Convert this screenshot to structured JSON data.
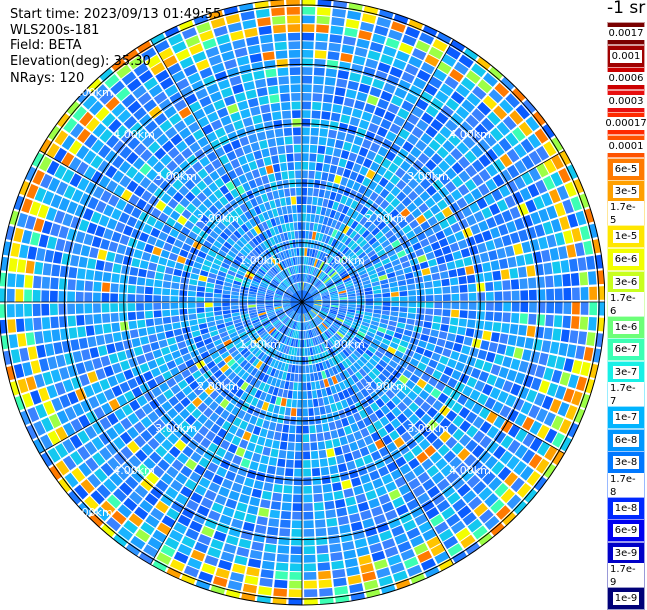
{
  "header": {
    "start_time": "Start time: 2023/09/13 01:49:55",
    "instrument": "WLS200s-181",
    "field": "Field: BETA",
    "elevation": "Elevation(deg): 35.30",
    "nrays": "NRays: 120"
  },
  "colorbar": {
    "unit": "-1 sr",
    "labels": [
      "0.0017",
      "0.001",
      "0.0006",
      "0.0003",
      "0.00017",
      "0.0001",
      "6e-5",
      "3e-5",
      "1.7e-5",
      "1e-5",
      "6e-6",
      "3e-6",
      "1.7e-6",
      "1e-6",
      "6e-7",
      "3e-7",
      "1.7e-7",
      "1e-7",
      "6e-8",
      "3e-8",
      "1.7e-8",
      "1e-8",
      "6e-9",
      "3e-9",
      "1.7e-9",
      "1e-9"
    ],
    "colors": [
      "#7a0000",
      "#a00000",
      "#cc0000",
      "#e81010",
      "#ff2a00",
      "#ff5200",
      "#ff7a00",
      "#ffa000",
      "#ffc400",
      "#ffe600",
      "#f2ff00",
      "#c8ff1e",
      "#9cff46",
      "#6cff78",
      "#3cffb4",
      "#18f0e6",
      "#00d2ff",
      "#00b4ff",
      "#0096ff",
      "#0078ff",
      "#0050ff",
      "#0028ff",
      "#0000f0",
      "#0000c8",
      "#00009c",
      "#000078"
    ]
  },
  "chart_data": {
    "type": "heatmap",
    "projection": "polar PPI",
    "n_rays": 120,
    "elevation_deg": 35.3,
    "field": "BETA",
    "range_rings_km": [
      1,
      2,
      3,
      4,
      5
    ],
    "range_ring_labels": [
      "1.00km",
      "2.00km",
      "3.00km",
      "4.00km",
      "5.00km"
    ],
    "max_range_km": 5.1,
    "dominant_value_range": [
      "1e-8",
      "6e-8"
    ],
    "outer_band": {
      "range_km": [
        4.5,
        5.0
      ],
      "value_range": [
        "1.7e-6",
        "1e-5"
      ],
      "description_color": "yellow-orange"
    },
    "radial_grid_lines_deg": [
      0,
      30,
      60,
      90,
      120,
      150,
      180,
      210,
      240,
      270,
      300,
      330
    ]
  }
}
